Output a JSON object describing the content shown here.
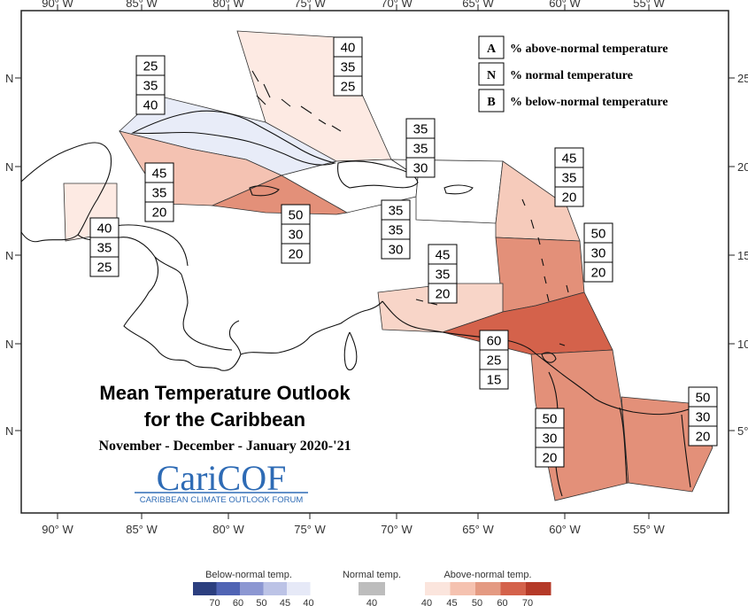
{
  "map": {
    "title_line1": "Mean Temperature Outlook",
    "title_line2": "for the Caribbean",
    "season": "November - December - January 2020-'21",
    "logo": {
      "text": "CariCOF",
      "tagline": "CARIBBEAN CLIMATE OUTLOOK FORUM"
    },
    "legend": [
      {
        "key": "A",
        "text": "% above-normal temperature"
      },
      {
        "key": "N",
        "text": "% normal temperature"
      },
      {
        "key": "B",
        "text": "% below-normal temperature"
      }
    ],
    "axes": {
      "lon_labels": [
        "90° W",
        "85° W",
        "80° W",
        "75° W",
        "70° W",
        "65° W",
        "60° W",
        "55° W"
      ],
      "lat_left_label": "N",
      "lat_right_labels": [
        "25",
        "20",
        "15",
        "10",
        "5°"
      ]
    },
    "regions": [
      {
        "id": "bahamas",
        "A": "40",
        "N": "35",
        "B": "25",
        "color": "#fdeae3"
      },
      {
        "id": "cuba",
        "A": "25",
        "N": "35",
        "B": "40",
        "color": "#e8ecf8"
      },
      {
        "id": "hispaniola",
        "A": "35",
        "N": "35",
        "B": "30",
        "color": "#ffffff"
      },
      {
        "id": "cayman",
        "A": "45",
        "N": "35",
        "B": "20",
        "color": "#f4c2b2"
      },
      {
        "id": "jamaica",
        "A": "50",
        "N": "30",
        "B": "20",
        "color": "#e39079"
      },
      {
        "id": "puerto-rico",
        "A": "35",
        "N": "35",
        "B": "30",
        "color": "#ffffff"
      },
      {
        "id": "belize",
        "A": "40",
        "N": "35",
        "B": "25",
        "color": "#fdeae3"
      },
      {
        "id": "leeward",
        "A": "45",
        "N": "35",
        "B": "20",
        "color": "#f6cbbb"
      },
      {
        "id": "windward",
        "A": "50",
        "N": "30",
        "B": "20",
        "color": "#e39079"
      },
      {
        "id": "abc-islands",
        "A": "45",
        "N": "35",
        "B": "20",
        "color": "#f8d5c8"
      },
      {
        "id": "trinidad",
        "A": "60",
        "N": "25",
        "B": "15",
        "color": "#d4624b"
      },
      {
        "id": "guyana",
        "A": "50",
        "N": "30",
        "B": "20",
        "color": "#e39079"
      },
      {
        "id": "suriname",
        "A": "50",
        "N": "30",
        "B": "20",
        "color": "#e39079"
      }
    ],
    "colorbar": {
      "below": {
        "title": "Below-normal temp.",
        "ticks": [
          "70",
          "60",
          "50",
          "45",
          "40"
        ],
        "colors": [
          "#2c3f7f",
          "#5064b4",
          "#8c97d2",
          "#bcc3e6",
          "#e6e9f7"
        ]
      },
      "normal": {
        "title": "Normal temp.",
        "ticks": [
          "40"
        ],
        "colors": [
          "#bdbdbd"
        ]
      },
      "above": {
        "title": "Above-normal temp.",
        "ticks": [
          "40",
          "45",
          "50",
          "60",
          "70"
        ],
        "colors": [
          "#fbe5dd",
          "#f5c2b0",
          "#e49a82",
          "#d4624b",
          "#b53a28"
        ]
      }
    }
  }
}
